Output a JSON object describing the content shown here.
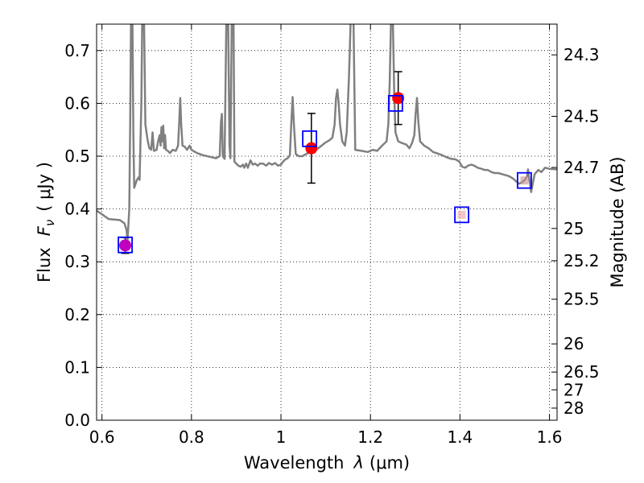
{
  "chart_data": {
    "type": "scatter",
    "xlabel_prefix": "Wavelength",
    "xlabel_symbol": "λ",
    "xlabel_unit": "(μm)",
    "ylabel_prefix": "Flux",
    "ylabel_symbol_base": "F",
    "ylabel_symbol_sub": "ν",
    "ylabel_unit": "( μJy )",
    "y2label": "Magnitude (AB)",
    "xlim": [
      0.588,
      1.617
    ],
    "ylim": [
      0.0,
      0.75
    ],
    "xticks": [
      "0.6",
      "0.8",
      "1",
      "1.2",
      "1.4",
      "1.6"
    ],
    "xtick_values": [
      0.6,
      0.8,
      1.0,
      1.2,
      1.4,
      1.6
    ],
    "yticks": [
      "0.0",
      "0.1",
      "0.2",
      "0.3",
      "0.4",
      "0.5",
      "0.6",
      "0.7"
    ],
    "ytick_values": [
      0.0,
      0.1,
      0.2,
      0.3,
      0.4,
      0.5,
      0.6,
      0.7
    ],
    "y2ticks": [
      {
        "label": "24.3",
        "mag": 24.3
      },
      {
        "label": "24.5",
        "mag": 24.5
      },
      {
        "label": "24.7",
        "mag": 24.7
      },
      {
        "label": "25",
        "mag": 25.0
      },
      {
        "label": "25.2",
        "mag": 25.2
      },
      {
        "label": "25.5",
        "mag": 25.5
      },
      {
        "label": "26",
        "mag": 26.0
      },
      {
        "label": "26.5",
        "mag": 26.5
      },
      {
        "label": "27",
        "mag": 27.0
      },
      {
        "label": "28",
        "mag": 28.0
      }
    ],
    "grid": true,
    "colors": {
      "spectrum": "#808080",
      "observed": "#ff0000",
      "observed_alt": "#bf00bf",
      "model": "#0000ff",
      "errorbar": "#000000",
      "grid": "#000000"
    },
    "spectrum": [
      [
        0.588,
        0.397
      ],
      [
        0.6,
        0.39
      ],
      [
        0.615,
        0.381
      ],
      [
        0.64,
        0.379
      ],
      [
        0.65,
        0.373
      ],
      [
        0.655,
        0.36
      ],
      [
        0.657,
        0.34
      ],
      [
        0.661,
        0.4
      ],
      [
        0.663,
        0.56
      ],
      [
        0.665,
        0.76
      ],
      [
        0.668,
        0.76
      ],
      [
        0.67,
        0.55
      ],
      [
        0.672,
        0.44
      ],
      [
        0.678,
        0.455
      ],
      [
        0.682,
        0.46
      ],
      [
        0.684,
        0.455
      ],
      [
        0.688,
        0.6
      ],
      [
        0.69,
        0.76
      ],
      [
        0.694,
        0.76
      ],
      [
        0.697,
        0.56
      ],
      [
        0.702,
        0.53
      ],
      [
        0.706,
        0.515
      ],
      [
        0.71,
        0.512
      ],
      [
        0.713,
        0.545
      ],
      [
        0.716,
        0.51
      ],
      [
        0.722,
        0.512
      ],
      [
        0.726,
        0.53
      ],
      [
        0.729,
        0.54
      ],
      [
        0.731,
        0.52
      ],
      [
        0.733,
        0.555
      ],
      [
        0.735,
        0.528
      ],
      [
        0.737,
        0.558
      ],
      [
        0.739,
        0.515
      ],
      [
        0.741,
        0.54
      ],
      [
        0.743,
        0.512
      ],
      [
        0.747,
        0.51
      ],
      [
        0.752,
        0.506
      ],
      [
        0.758,
        0.512
      ],
      [
        0.765,
        0.51
      ],
      [
        0.77,
        0.52
      ],
      [
        0.773,
        0.57
      ],
      [
        0.775,
        0.61
      ],
      [
        0.777,
        0.56
      ],
      [
        0.78,
        0.52
      ],
      [
        0.785,
        0.518
      ],
      [
        0.79,
        0.512
      ],
      [
        0.796,
        0.52
      ],
      [
        0.8,
        0.512
      ],
      [
        0.808,
        0.508
      ],
      [
        0.815,
        0.505
      ],
      [
        0.825,
        0.502
      ],
      [
        0.835,
        0.5
      ],
      [
        0.845,
        0.498
      ],
      [
        0.855,
        0.496
      ],
      [
        0.863,
        0.5
      ],
      [
        0.866,
        0.565
      ],
      [
        0.868,
        0.58
      ],
      [
        0.87,
        0.5
      ],
      [
        0.874,
        0.495
      ],
      [
        0.878,
        0.76
      ],
      [
        0.882,
        0.76
      ],
      [
        0.885,
        0.52
      ],
      [
        0.887,
        0.496
      ],
      [
        0.89,
        0.76
      ],
      [
        0.894,
        0.76
      ],
      [
        0.896,
        0.49
      ],
      [
        0.9,
        0.486
      ],
      [
        0.905,
        0.482
      ],
      [
        0.91,
        0.48
      ],
      [
        0.915,
        0.484
      ],
      [
        0.918,
        0.478
      ],
      [
        0.922,
        0.486
      ],
      [
        0.926,
        0.478
      ],
      [
        0.932,
        0.492
      ],
      [
        0.937,
        0.484
      ],
      [
        0.942,
        0.486
      ],
      [
        0.948,
        0.482
      ],
      [
        0.953,
        0.486
      ],
      [
        0.96,
        0.486
      ],
      [
        0.967,
        0.482
      ],
      [
        0.973,
        0.487
      ],
      [
        0.98,
        0.484
      ],
      [
        0.987,
        0.487
      ],
      [
        0.993,
        0.482
      ],
      [
        1.0,
        0.484
      ],
      [
        1.005,
        0.49
      ],
      [
        1.01,
        0.494
      ],
      [
        1.015,
        0.496
      ],
      [
        1.02,
        0.502
      ],
      [
        1.023,
        0.56
      ],
      [
        1.026,
        0.612
      ],
      [
        1.029,
        0.56
      ],
      [
        1.033,
        0.504
      ],
      [
        1.04,
        0.5
      ],
      [
        1.048,
        0.5
      ],
      [
        1.058,
        0.505
      ],
      [
        1.068,
        0.508
      ],
      [
        1.078,
        0.512
      ],
      [
        1.088,
        0.518
      ],
      [
        1.098,
        0.525
      ],
      [
        1.108,
        0.53
      ],
      [
        1.115,
        0.535
      ],
      [
        1.12,
        0.56
      ],
      [
        1.123,
        0.61
      ],
      [
        1.126,
        0.626
      ],
      [
        1.129,
        0.6
      ],
      [
        1.132,
        0.56
      ],
      [
        1.137,
        0.528
      ],
      [
        1.143,
        0.52
      ],
      [
        1.147,
        0.545
      ],
      [
        1.152,
        0.65
      ],
      [
        1.156,
        0.76
      ],
      [
        1.162,
        0.76
      ],
      [
        1.166,
        0.512
      ],
      [
        1.18,
        0.51
      ],
      [
        1.194,
        0.508
      ],
      [
        1.205,
        0.512
      ],
      [
        1.215,
        0.51
      ],
      [
        1.226,
        0.52
      ],
      [
        1.236,
        0.528
      ],
      [
        1.24,
        0.56
      ],
      [
        1.243,
        0.64
      ],
      [
        1.246,
        0.76
      ],
      [
        1.25,
        0.76
      ],
      [
        1.253,
        0.62
      ],
      [
        1.256,
        0.545
      ],
      [
        1.262,
        0.528
      ],
      [
        1.27,
        0.525
      ],
      [
        1.28,
        0.522
      ],
      [
        1.287,
        0.515
      ],
      [
        1.293,
        0.525
      ],
      [
        1.298,
        0.54
      ],
      [
        1.301,
        0.58
      ],
      [
        1.304,
        0.61
      ],
      [
        1.307,
        0.565
      ],
      [
        1.311,
        0.528
      ],
      [
        1.32,
        0.52
      ],
      [
        1.33,
        0.515
      ],
      [
        1.34,
        0.508
      ],
      [
        1.35,
        0.505
      ],
      [
        1.36,
        0.502
      ],
      [
        1.37,
        0.498
      ],
      [
        1.38,
        0.495
      ],
      [
        1.39,
        0.494
      ],
      [
        1.398,
        0.49
      ],
      [
        1.405,
        0.48
      ],
      [
        1.412,
        0.478
      ],
      [
        1.418,
        0.482
      ],
      [
        1.425,
        0.484
      ],
      [
        1.432,
        0.482
      ],
      [
        1.44,
        0.478
      ],
      [
        1.448,
        0.476
      ],
      [
        1.455,
        0.474
      ],
      [
        1.462,
        0.474
      ],
      [
        1.47,
        0.47
      ],
      [
        1.478,
        0.468
      ],
      [
        1.486,
        0.468
      ],
      [
        1.494,
        0.466
      ],
      [
        1.502,
        0.464
      ],
      [
        1.51,
        0.462
      ],
      [
        1.518,
        0.458
      ],
      [
        1.526,
        0.452
      ],
      [
        1.532,
        0.448
      ],
      [
        1.538,
        0.45
      ],
      [
        1.545,
        0.455
      ],
      [
        1.55,
        0.462
      ],
      [
        1.552,
        0.475
      ],
      [
        1.556,
        0.45
      ],
      [
        1.559,
        0.432
      ],
      [
        1.562,
        0.445
      ],
      [
        1.567,
        0.466
      ],
      [
        1.575,
        0.474
      ],
      [
        1.582,
        0.47
      ],
      [
        1.59,
        0.478
      ],
      [
        1.6,
        0.476
      ],
      [
        1.617,
        0.475
      ]
    ],
    "observed": [
      {
        "x": 0.652,
        "y": 0.331,
        "yerr": 0.015,
        "color": "observed_alt"
      },
      {
        "x": 1.068,
        "y": 0.515,
        "yerr": 0.066,
        "color": "observed"
      },
      {
        "x": 1.262,
        "y": 0.61,
        "yerr": 0.05,
        "color": "observed"
      }
    ],
    "model": [
      {
        "x": 0.652,
        "y": 0.332
      },
      {
        "x": 1.064,
        "y": 0.533
      },
      {
        "x": 1.256,
        "y": 0.6
      },
      {
        "x": 1.404,
        "y": 0.389
      },
      {
        "x": 1.544,
        "y": 0.454
      }
    ],
    "faint_points": [
      {
        "x": 1.404,
        "y": 0.389,
        "color": "#e8a0a0"
      },
      {
        "x": 1.544,
        "y": 0.454,
        "color": "#c89090"
      }
    ]
  }
}
